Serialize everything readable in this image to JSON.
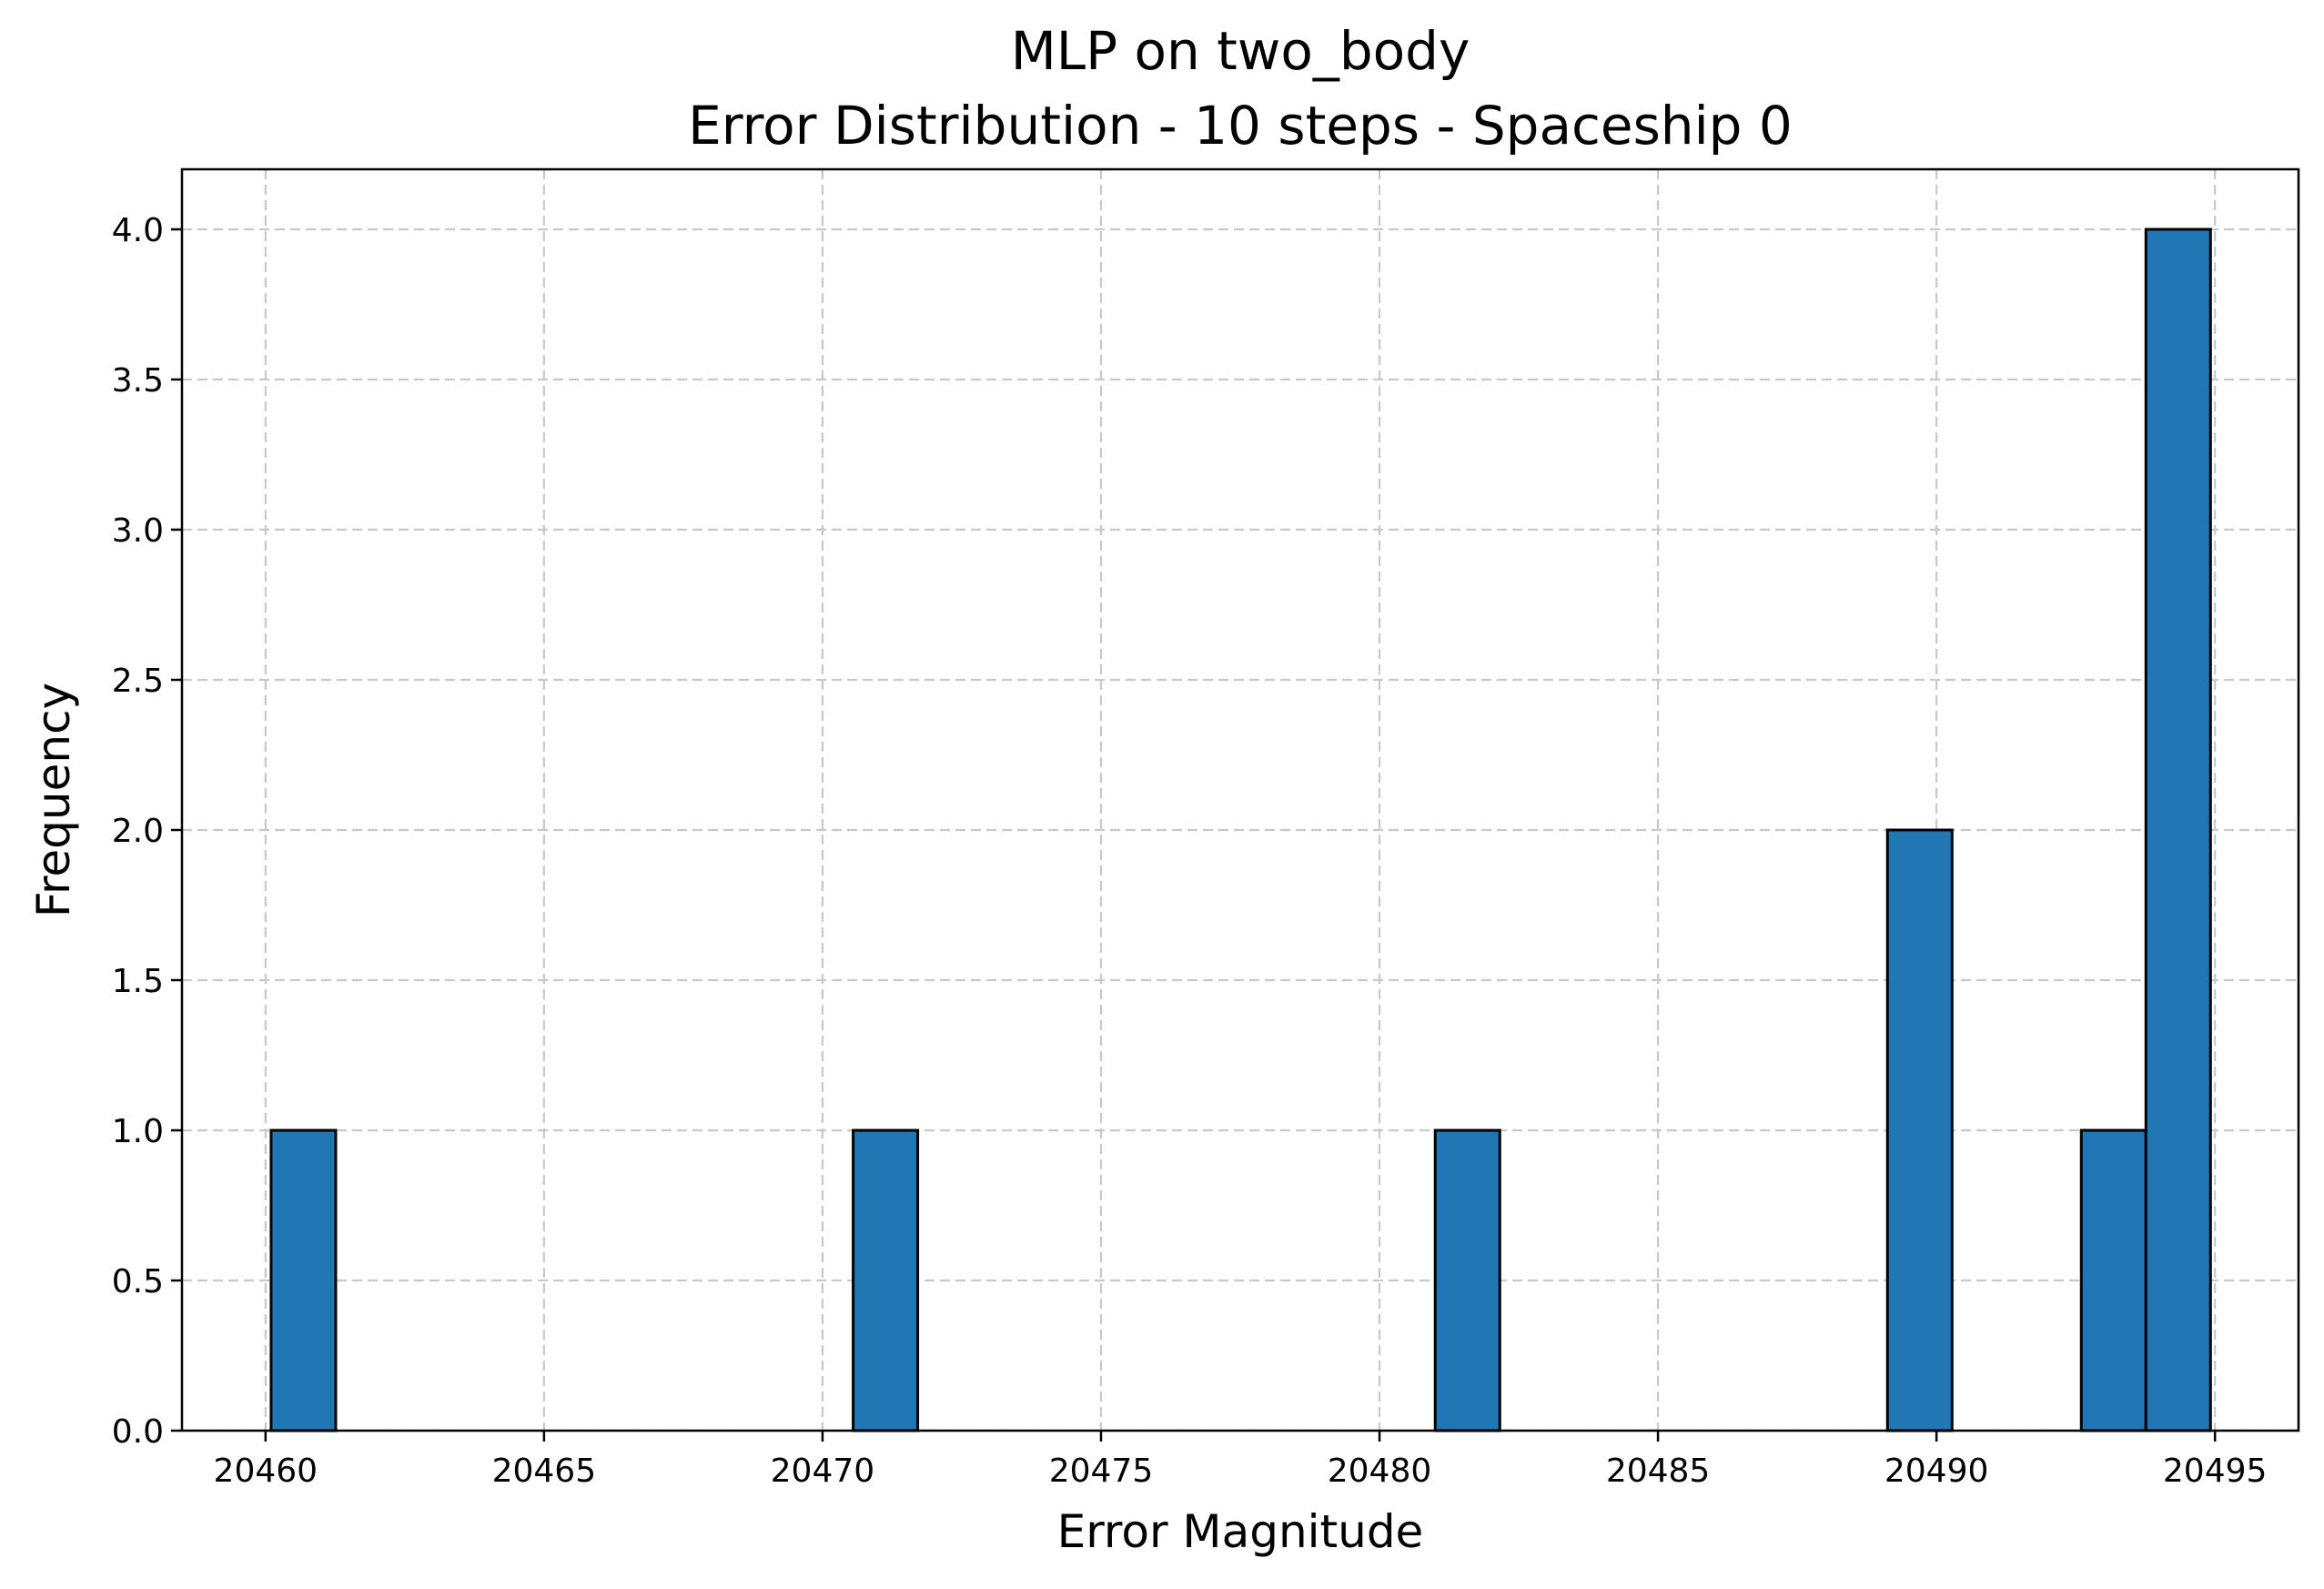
{
  "chart_data": {
    "type": "bar",
    "title_line1": "MLP on two_body",
    "title_line2": "Error Distribution - 10 steps - Spaceship 0",
    "xlabel": "Error Magnitude",
    "ylabel": "Frequency",
    "xlim": [
      20458.5,
      20496.5
    ],
    "ylim": [
      0,
      4.2
    ],
    "x_ticks": [
      "20460",
      "20465",
      "20470",
      "20475",
      "20480",
      "20485",
      "20490",
      "20495"
    ],
    "y_ticks": [
      "0.0",
      "0.5",
      "1.0",
      "1.5",
      "2.0",
      "2.5",
      "3.0",
      "3.5",
      "4.0"
    ],
    "bar_width": 1.16,
    "bins": [
      {
        "start": 20460.1,
        "count": 1
      },
      {
        "start": 20470.55,
        "count": 1
      },
      {
        "start": 20481.0,
        "count": 1
      },
      {
        "start": 20489.12,
        "count": 2
      },
      {
        "start": 20492.6,
        "count": 1
      },
      {
        "start": 20493.76,
        "count": 4
      }
    ],
    "grid": true,
    "grid_style": "dashed",
    "bar_color": "#2077b4",
    "edge_color": "#000000",
    "grid_color": "#c8c8c8"
  }
}
